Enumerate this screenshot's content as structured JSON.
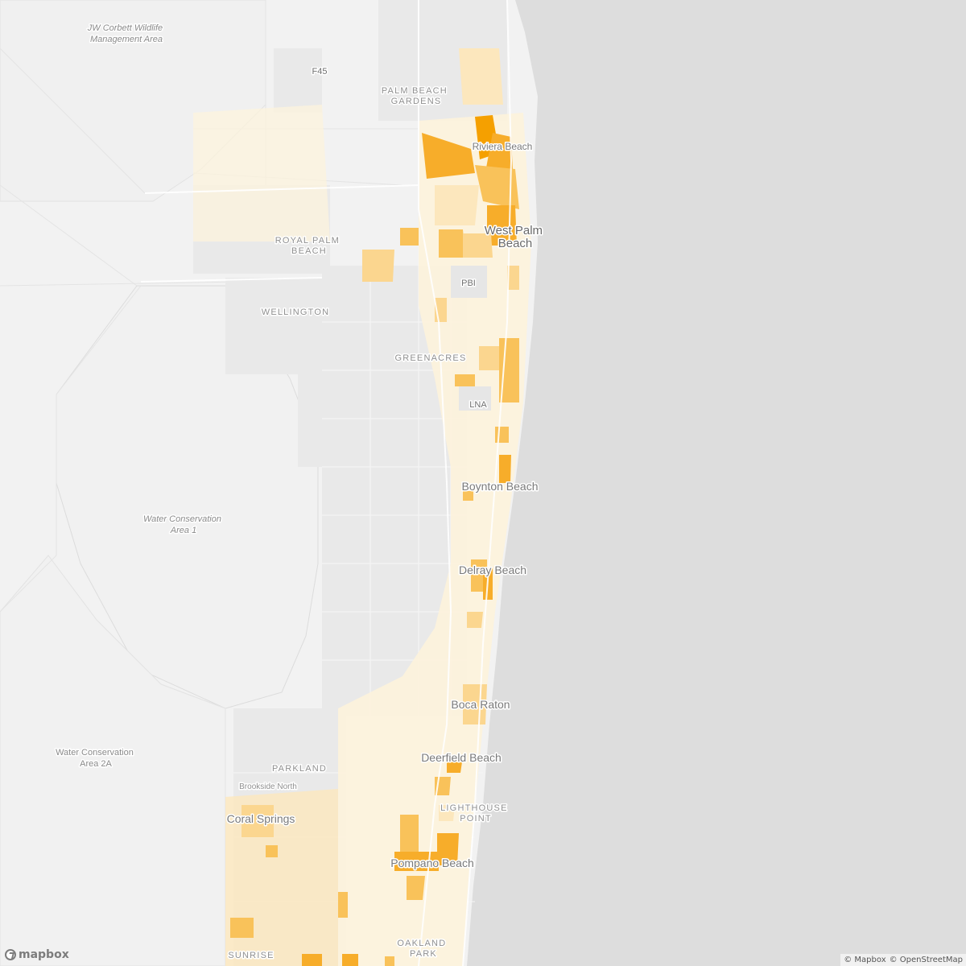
{
  "map": {
    "ocean_color": "#dddddd",
    "land_color": "#f2f2f2",
    "choropleth_colors": [
      "#fdf3dc",
      "#fce7bd",
      "#fbd68f",
      "#f9c25a",
      "#f7ad2a",
      "#f5a000"
    ],
    "labels": {
      "jw_corbett_line1": "JW Corbett Wildlife",
      "jw_corbett_line2": "Management Area",
      "f45": "F45",
      "palm_beach_gardens_line1": "PALM BEACH",
      "palm_beach_gardens_line2": "GARDENS",
      "riviera_beach": "Riviera Beach",
      "west_palm_beach_line1": "West Palm",
      "west_palm_beach_line2": "Beach",
      "royal_palm_beach_line1": "ROYAL PALM",
      "royal_palm_beach_line2": "BEACH",
      "pbi": "PBI",
      "wellington": "WELLINGTON",
      "greenacres": "GREENACRES",
      "lna": "LNA",
      "water_conservation_1_line1": "Water Conservation",
      "water_conservation_1_line2": "Area 1",
      "boynton_beach": "Boynton Beach",
      "delray_beach": "Delray Beach",
      "boca_raton": "Boca Raton",
      "water_conservation_2a_line1": "Water Conservation",
      "water_conservation_2a_line2": "Area 2A",
      "deerfield_beach": "Deerfield Beach",
      "parkland": "PARKLAND",
      "brookside_north": "Brookside North",
      "lighthouse_point_line1": "LIGHTHOUSE",
      "lighthouse_point_line2": "POINT",
      "coral_springs": "Coral Springs",
      "pompano_beach": "Pompano Beach",
      "oakland_park_line1": "OAKLAND",
      "oakland_park_line2": "PARK",
      "sunrise": "SUNRISE"
    }
  },
  "logo": {
    "text": "mapbox",
    "icon": "mapbox-logo-icon"
  },
  "attribution": {
    "mapbox": "© Mapbox",
    "osm": "© OpenStreetMap"
  }
}
